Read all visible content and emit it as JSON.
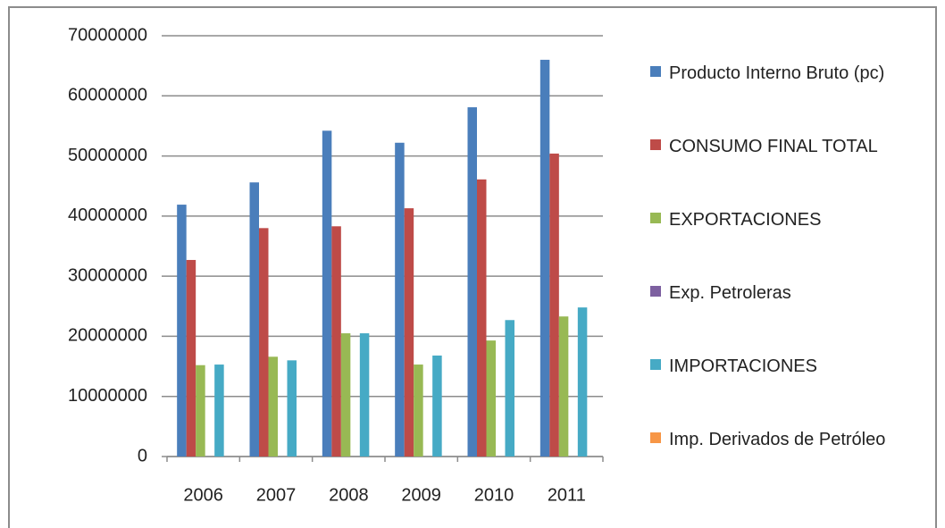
{
  "chart_data": {
    "type": "bar",
    "categories": [
      "2006",
      "2007",
      "2008",
      "2009",
      "2010",
      "2011"
    ],
    "series": [
      {
        "name": "Producto Interno Bruto (pc)",
        "color": "#4a7ebb",
        "values": [
          41900000,
          45600000,
          54200000,
          52200000,
          58100000,
          66000000
        ]
      },
      {
        "name": "CONSUMO FINAL TOTAL",
        "color": "#be4b48",
        "values": [
          32700000,
          38000000,
          38300000,
          41300000,
          46100000,
          50400000
        ]
      },
      {
        "name": "EXPORTACIONES",
        "color": "#98b954",
        "values": [
          15200000,
          16600000,
          20500000,
          15300000,
          19300000,
          23300000
        ]
      },
      {
        "name": "Exp. Petroleras",
        "color": "#7d60a0",
        "values": [
          null,
          null,
          null,
          null,
          null,
          null
        ]
      },
      {
        "name": "IMPORTACIONES",
        "color": "#46aac5",
        "values": [
          15300000,
          16000000,
          20500000,
          16800000,
          22700000,
          24800000
        ]
      },
      {
        "name": "Imp. Derivados de Petróleo",
        "color": "#f79646",
        "values": [
          null,
          null,
          null,
          null,
          null,
          null
        ]
      }
    ],
    "ylim": [
      0,
      70000000
    ],
    "yticks": [
      0,
      10000000,
      20000000,
      30000000,
      40000000,
      50000000,
      60000000,
      70000000
    ],
    "grid": true,
    "legend": "right"
  }
}
